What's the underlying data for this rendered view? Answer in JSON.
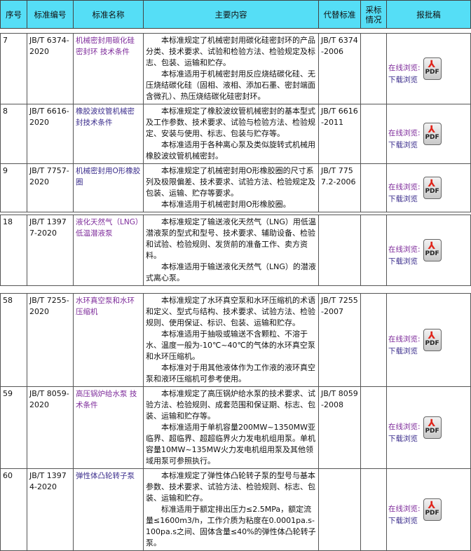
{
  "header": {
    "cols": [
      "序号",
      "标准编号",
      "标准名称",
      "主要内容",
      "代替标准",
      "采标情况",
      "报批稿"
    ],
    "bg": "#55def6"
  },
  "link_labels": {
    "online": "在线浏览:",
    "download": "下载浏览",
    "pdf": "PDF"
  },
  "rows": [
    {
      "no": "7",
      "code": "JB/T 6374-2020",
      "name": "机械密封用碳化硅密封环 技术条件",
      "content": [
        "本标准规定了机械密封用碳化硅密封环的产品分类、技术要求、试验和检验方法、检验规定及标志、包装、运输和贮存。",
        "本标准适用于机械密封用反应烧结碳化硅、无压烧结碳化硅（固相、液相、添加石墨、密封端面含微孔）、热压烧结碳化硅密封环。"
      ],
      "replace": "JB/T 6374-2006",
      "adopt": ""
    },
    {
      "no": "8",
      "code": "JB/T 6616-2020",
      "name": "橡胶波纹管机械密封技术条件",
      "content": [
        "本标准规定了橡胶波纹管机械密封的基本型式及工作参数、技术要求、试验与检验方法、检验规定、安装与使用、标志、包装与贮存等。",
        "本标准适用于各种离心泵及类似旋转式机械用橡胶波纹管机械密封。"
      ],
      "replace": "JB/T 6616-2011",
      "adopt": ""
    },
    {
      "no": "9",
      "code": "JB/T 7757-2020",
      "name": "机械密封用O形橡胶圈",
      "content": [
        "本标准规定了机械密封用O形橡胶圈的尺寸系列及极限偏差、技术要求、试验方法、检验规定及包装、运输、贮存等要求。",
        "本标准适用于机械密封用O形橡胶圈。"
      ],
      "replace": "JB/T 7757.2-2006",
      "adopt": ""
    },
    {
      "no": "18",
      "code": "JB/T 13977-2020",
      "name": "液化天然气（LNG）低温潜液泵",
      "content": [
        "本标准规定了输送液化天然气（LNG）用低温潜液泵的型式和型号、技术要求、辅助设备、检验和试验、检验规则、发货前的准备工作、卖方资料。",
        "本标准适用于输送液化天然气（LNG）的潜液式离心泵。"
      ],
      "replace": "",
      "adopt": ""
    },
    {
      "no": "58",
      "code": "JB/T 7255-2020",
      "name": "水环真空泵和水环压缩机",
      "content": [
        "本标准规定了水环真空泵和水环压缩机的术语和定义、型式与结构、技术要求、试验方法、检验规则、使用保证、标识、包装、运输和贮存。",
        "本标准适用于抽吸或输送不含颗粒、不溶于水、温度一般为-10℃~40℃的气体的水环真空泵和水环压缩机。",
        "本标准对于用其他液体作为工作液的液环真空泵和液环压缩机可参考使用。"
      ],
      "replace": "JB/T 7255-2007",
      "adopt": ""
    },
    {
      "no": "59",
      "code": "JB/T 8059-2020",
      "name": "高压锅炉给水泵 技术条件",
      "content": [
        "本标准规定了高压锅炉给水泵的技术要求、试验方法、检验规则、成套范围和保证期、标志、包装、运输和贮存等。",
        "本标准适用于单机容量200MW~1350MW亚临界、超临界、超超临界火力发电机组用泵。单机容量10MW~135MW火力发电机组用泵及其他领域用泵可参照执行。"
      ],
      "replace": "JB/T 8059-2008",
      "adopt": ""
    },
    {
      "no": "60",
      "code": "JB/T 13974-2020",
      "name": "弹性体凸轮转子泵",
      "content": [
        "本标准规定了弹性体凸轮转子泵的型号与基本参数、技术要求、试验方法、检验规则、标志、包装、运输和贮存。",
        "标准适用于额定排出压力≤2.5MPa，额定流量≤1600m3/h，工作介质为粘度在0.0001pa.s-100pa.s之间、固体含量≤40%的弹性体凸轮转子泵。"
      ],
      "replace": "",
      "adopt": ""
    }
  ]
}
